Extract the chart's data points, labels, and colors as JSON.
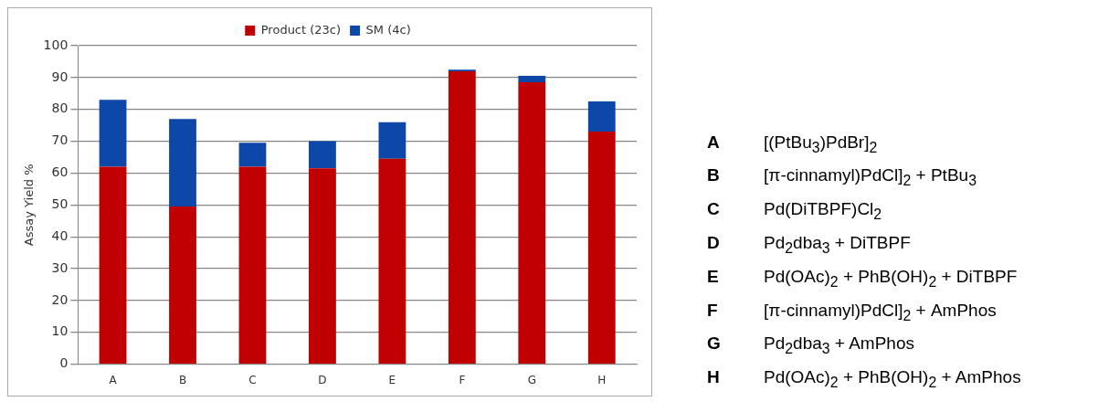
{
  "chart_data": {
    "type": "bar",
    "stacked": true,
    "ylabel": "Assay Yield %",
    "categories": [
      "A",
      "B",
      "C",
      "D",
      "E",
      "F",
      "G",
      "H"
    ],
    "series": [
      {
        "name": "Product (23c)",
        "color": "#c00000",
        "values": [
          62,
          49.5,
          62,
          61.5,
          64.5,
          92,
          88.5,
          73
        ]
      },
      {
        "name": "SM (4c)",
        "color": "#0d47a8",
        "values": [
          21,
          27.5,
          7.5,
          8.5,
          11.5,
          0.5,
          2,
          9.5
        ]
      }
    ],
    "ylim": [
      0,
      100
    ],
    "yticks": [
      0,
      10,
      20,
      30,
      40,
      50,
      60,
      70,
      80,
      90,
      100
    ],
    "grid": "y",
    "legend": "top",
    "annotations": [
      "[(PtBu$_{3}$)PdBr]$_{2}$",
      "[π-cinnamyl)PdCl]$_{2}$ + PtBu$_{3}$",
      "Pd(DiTBPF)Cl$_{2}$",
      "Pd$_{2}$dba$_{3}$ + DiTBPF",
      "Pd(OAc)$_{2}$ + PhB(OH)$_{2}$ + DiTBPF",
      "[π-cinnamyl)PdCl]$_{2}$ + AmPhos",
      "Pd$_{2}$dba$_{3}$ + AmPhos",
      "Pd(OAc)$_{2}$ + PhB(OH)$_{2}$ + AmPhos"
    ]
  }
}
